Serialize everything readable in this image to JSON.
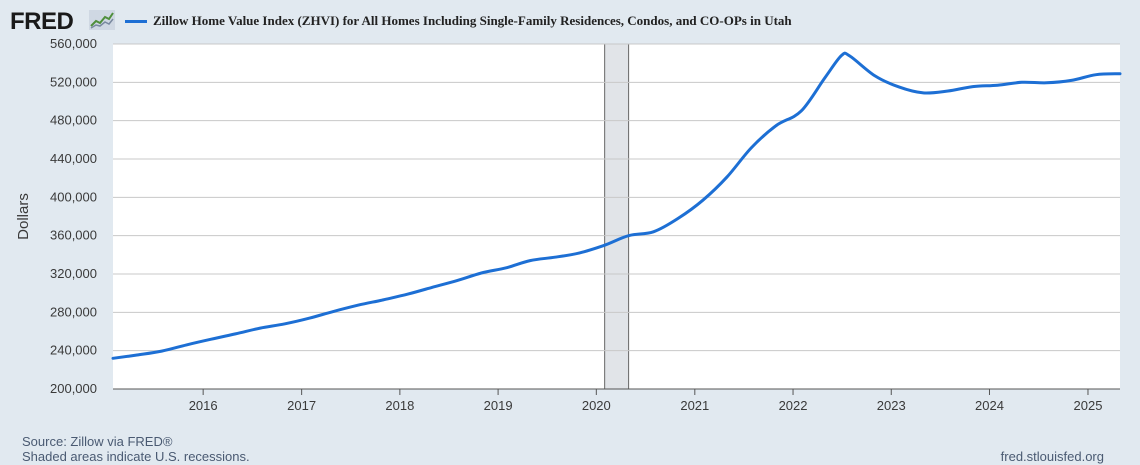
{
  "header": {
    "logo_text": "FRED",
    "series_label": "Zillow Home Value Index (ZHVI) for All Homes Including Single-Family Residences, Condos, and CO-OPs in Utah",
    "series_color": "#1d6fd4"
  },
  "footer": {
    "source": "Source: Zillow via FRED®",
    "shading_note": "Shaded areas indicate U.S. recessions.",
    "site": "fred.stlouisfed.org"
  },
  "chart_data": {
    "type": "line",
    "title": "Zillow Home Value Index (ZHVI) for All Homes Including Single-Family Residences, Condos, and CO-OPs in Utah",
    "ylabel": "Dollars",
    "xlabel": "",
    "ylim": [
      200000,
      560000
    ],
    "xlim": [
      "2015-01-31",
      "2025-04-30"
    ],
    "yticks": [
      200000,
      240000,
      280000,
      320000,
      360000,
      400000,
      440000,
      480000,
      520000,
      560000
    ],
    "ytick_labels": [
      "200,000",
      "240,000",
      "280,000",
      "320,000",
      "360,000",
      "400,000",
      "440,000",
      "480,000",
      "520,000",
      "560,000"
    ],
    "xticks": [
      "2016-01-01",
      "2017-01-01",
      "2018-01-01",
      "2019-01-01",
      "2020-01-01",
      "2021-01-01",
      "2022-01-01",
      "2023-01-01",
      "2024-01-01",
      "2025-01-01"
    ],
    "xtick_labels": [
      "2016",
      "2017",
      "2018",
      "2019",
      "2020",
      "2021",
      "2022",
      "2023",
      "2024",
      "2025"
    ],
    "grid": true,
    "recessions": [
      {
        "start": "2020-02-01",
        "end": "2020-04-30"
      }
    ],
    "series": [
      {
        "name": "Zillow Home Value Index (ZHVI) for All Homes Including Single-Family Residences, Condos, and CO-OPs in Utah",
        "color": "#1d6fd4",
        "points": [
          [
            "2015-01-31",
            232000
          ],
          [
            "2015-04-30",
            235500
          ],
          [
            "2015-07-31",
            239500
          ],
          [
            "2015-10-31",
            246000
          ],
          [
            "2016-01-31",
            252000
          ],
          [
            "2016-04-30",
            257500
          ],
          [
            "2016-07-31",
            263500
          ],
          [
            "2016-10-31",
            268000
          ],
          [
            "2017-01-31",
            274000
          ],
          [
            "2017-04-30",
            281000
          ],
          [
            "2017-07-31",
            287500
          ],
          [
            "2017-10-31",
            293000
          ],
          [
            "2018-01-31",
            299000
          ],
          [
            "2018-04-30",
            306000
          ],
          [
            "2018-07-31",
            313000
          ],
          [
            "2018-10-31",
            321000
          ],
          [
            "2019-01-31",
            326500
          ],
          [
            "2019-04-30",
            334000
          ],
          [
            "2019-07-31",
            337500
          ],
          [
            "2019-10-31",
            342000
          ],
          [
            "2020-01-31",
            350000
          ],
          [
            "2020-04-30",
            360000
          ],
          [
            "2020-07-31",
            364000
          ],
          [
            "2020-10-31",
            378000
          ],
          [
            "2021-01-31",
            397000
          ],
          [
            "2021-04-30",
            421000
          ],
          [
            "2021-07-31",
            452000
          ],
          [
            "2021-10-31",
            475000
          ],
          [
            "2022-01-31",
            490000
          ],
          [
            "2022-04-30",
            525000
          ],
          [
            "2022-06-30",
            548000
          ],
          [
            "2022-07-31",
            547500
          ],
          [
            "2022-10-31",
            527000
          ],
          [
            "2023-01-31",
            515000
          ],
          [
            "2023-04-30",
            509000
          ],
          [
            "2023-07-31",
            511000
          ],
          [
            "2023-10-31",
            515500
          ],
          [
            "2024-01-31",
            517000
          ],
          [
            "2024-04-30",
            520000
          ],
          [
            "2024-07-31",
            519500
          ],
          [
            "2024-10-31",
            522000
          ],
          [
            "2025-01-31",
            528000
          ],
          [
            "2025-04-30",
            529000
          ]
        ]
      }
    ]
  }
}
